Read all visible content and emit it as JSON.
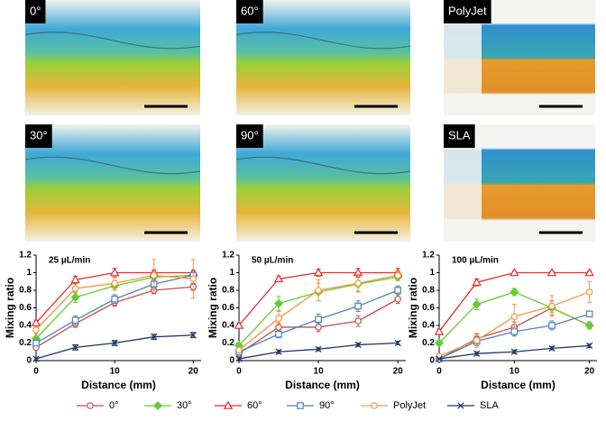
{
  "images": [
    {
      "label": "0°"
    },
    {
      "label": "60°"
    },
    {
      "label": "PolyJet"
    },
    {
      "label": "30°"
    },
    {
      "label": "90°"
    },
    {
      "label": "SLA"
    }
  ],
  "legend": [
    {
      "name": "0°",
      "color": "#c0504d",
      "marker": "circle"
    },
    {
      "name": "30°",
      "color": "#66cc33",
      "marker": "diamond"
    },
    {
      "name": "60°",
      "color": "#e03030",
      "marker": "triangle"
    },
    {
      "name": "90°",
      "color": "#4f81bd",
      "marker": "square"
    },
    {
      "name": "PolyJet",
      "color": "#f79646",
      "marker": "circle"
    },
    {
      "name": "SLA",
      "color": "#1f3864",
      "marker": "cross"
    }
  ],
  "chart_data": [
    {
      "type": "line",
      "title": "25 µL/min",
      "xlabel": "Distance (mm)",
      "ylabel": "Mixing ratio",
      "x": [
        0,
        5,
        10,
        15,
        20
      ],
      "xlim": [
        0,
        21
      ],
      "xticks": [
        0,
        10,
        20
      ],
      "ylim": [
        0,
        1.2
      ],
      "yticks": [
        0,
        0.2,
        0.4,
        0.6,
        0.8,
        1,
        1.2
      ],
      "series": [
        {
          "values": [
            0.15,
            0.42,
            0.66,
            0.8,
            0.84
          ],
          "errors": [
            0.03,
            0.04,
            0.04,
            0.04,
            0.04
          ]
        },
        {
          "values": [
            0.25,
            0.72,
            0.85,
            0.95,
            0.97
          ],
          "errors": [
            0.03,
            0.06,
            0.05,
            0.04,
            0.03
          ]
        },
        {
          "values": [
            0.43,
            0.92,
            1.0,
            1.0,
            1.0
          ],
          "errors": [
            0.03,
            0.04,
            0.05,
            0.03,
            0.03
          ]
        },
        {
          "values": [
            0.2,
            0.46,
            0.7,
            0.87,
            0.97
          ],
          "errors": [
            0.03,
            0.05,
            0.05,
            0.06,
            0.04
          ]
        },
        {
          "values": [
            0.35,
            0.82,
            0.88,
            0.97,
            0.93
          ],
          "errors": [
            0.04,
            0.05,
            0.08,
            0.18,
            0.22
          ]
        },
        {
          "values": [
            0.02,
            0.15,
            0.2,
            0.27,
            0.29
          ],
          "errors": [
            0.01,
            0.03,
            0.03,
            0.03,
            0.03
          ]
        }
      ]
    },
    {
      "type": "line",
      "title": "50 µL/min",
      "xlabel": "Distance (mm)",
      "ylabel": "Mixing ratio",
      "x": [
        0,
        5,
        10,
        15,
        20
      ],
      "xlim": [
        0,
        21
      ],
      "xticks": [
        0,
        10,
        20
      ],
      "ylim": [
        0,
        1.2
      ],
      "yticks": [
        0,
        0.2,
        0.4,
        0.6,
        0.8,
        1,
        1.2
      ],
      "series": [
        {
          "values": [
            0.08,
            0.38,
            0.38,
            0.45,
            0.7
          ],
          "errors": [
            0.02,
            0.05,
            0.05,
            0.06,
            0.05
          ]
        },
        {
          "values": [
            0.17,
            0.65,
            0.78,
            0.87,
            0.95
          ],
          "errors": [
            0.03,
            0.08,
            0.1,
            0.08,
            0.04
          ]
        },
        {
          "values": [
            0.4,
            0.93,
            1.0,
            1.0,
            1.0
          ],
          "errors": [
            0.03,
            0.03,
            0.04,
            0.05,
            0.05
          ]
        },
        {
          "values": [
            0.1,
            0.3,
            0.47,
            0.62,
            0.8
          ],
          "errors": [
            0.02,
            0.04,
            0.06,
            0.06,
            0.05
          ]
        },
        {
          "values": [
            0.12,
            0.48,
            0.8,
            0.88,
            0.97
          ],
          "errors": [
            0.02,
            0.08,
            0.12,
            0.1,
            0.05
          ]
        },
        {
          "values": [
            0.02,
            0.1,
            0.13,
            0.18,
            0.2
          ],
          "errors": [
            0.01,
            0.02,
            0.02,
            0.02,
            0.02
          ]
        }
      ]
    },
    {
      "type": "line",
      "title": "100 µL/min",
      "xlabel": "Distance (mm)",
      "ylabel": "Mixing ratio",
      "x": [
        0,
        5,
        10,
        15,
        20
      ],
      "xlim": [
        0,
        21
      ],
      "xticks": [
        0,
        10,
        20
      ],
      "ylim": [
        0,
        1.2
      ],
      "yticks": [
        0,
        0.2,
        0.4,
        0.6,
        0.8,
        1,
        1.2
      ],
      "series": [
        {
          "values": [
            0.02,
            0.25,
            0.38,
            0.6,
            0.4
          ],
          "errors": [
            0.01,
            0.05,
            0.06,
            0.08,
            0.04
          ]
        },
        {
          "values": [
            0.2,
            0.64,
            0.78,
            0.6,
            0.4
          ],
          "errors": [
            0.03,
            0.06,
            0.04,
            0.05,
            0.04
          ]
        },
        {
          "values": [
            0.33,
            0.89,
            1.0,
            1.0,
            1.0
          ],
          "errors": [
            0.03,
            0.04,
            0.02,
            0.02,
            0.02
          ]
        },
        {
          "values": [
            0.02,
            0.22,
            0.33,
            0.4,
            0.53
          ],
          "errors": [
            0.01,
            0.05,
            0.05,
            0.05,
            0.03
          ]
        },
        {
          "values": [
            0.05,
            0.23,
            0.5,
            0.62,
            0.78
          ],
          "errors": [
            0.01,
            0.08,
            0.14,
            0.12,
            0.12
          ]
        },
        {
          "values": [
            0.02,
            0.08,
            0.1,
            0.14,
            0.17
          ],
          "errors": [
            0.01,
            0.02,
            0.02,
            0.02,
            0.02
          ]
        }
      ]
    }
  ]
}
